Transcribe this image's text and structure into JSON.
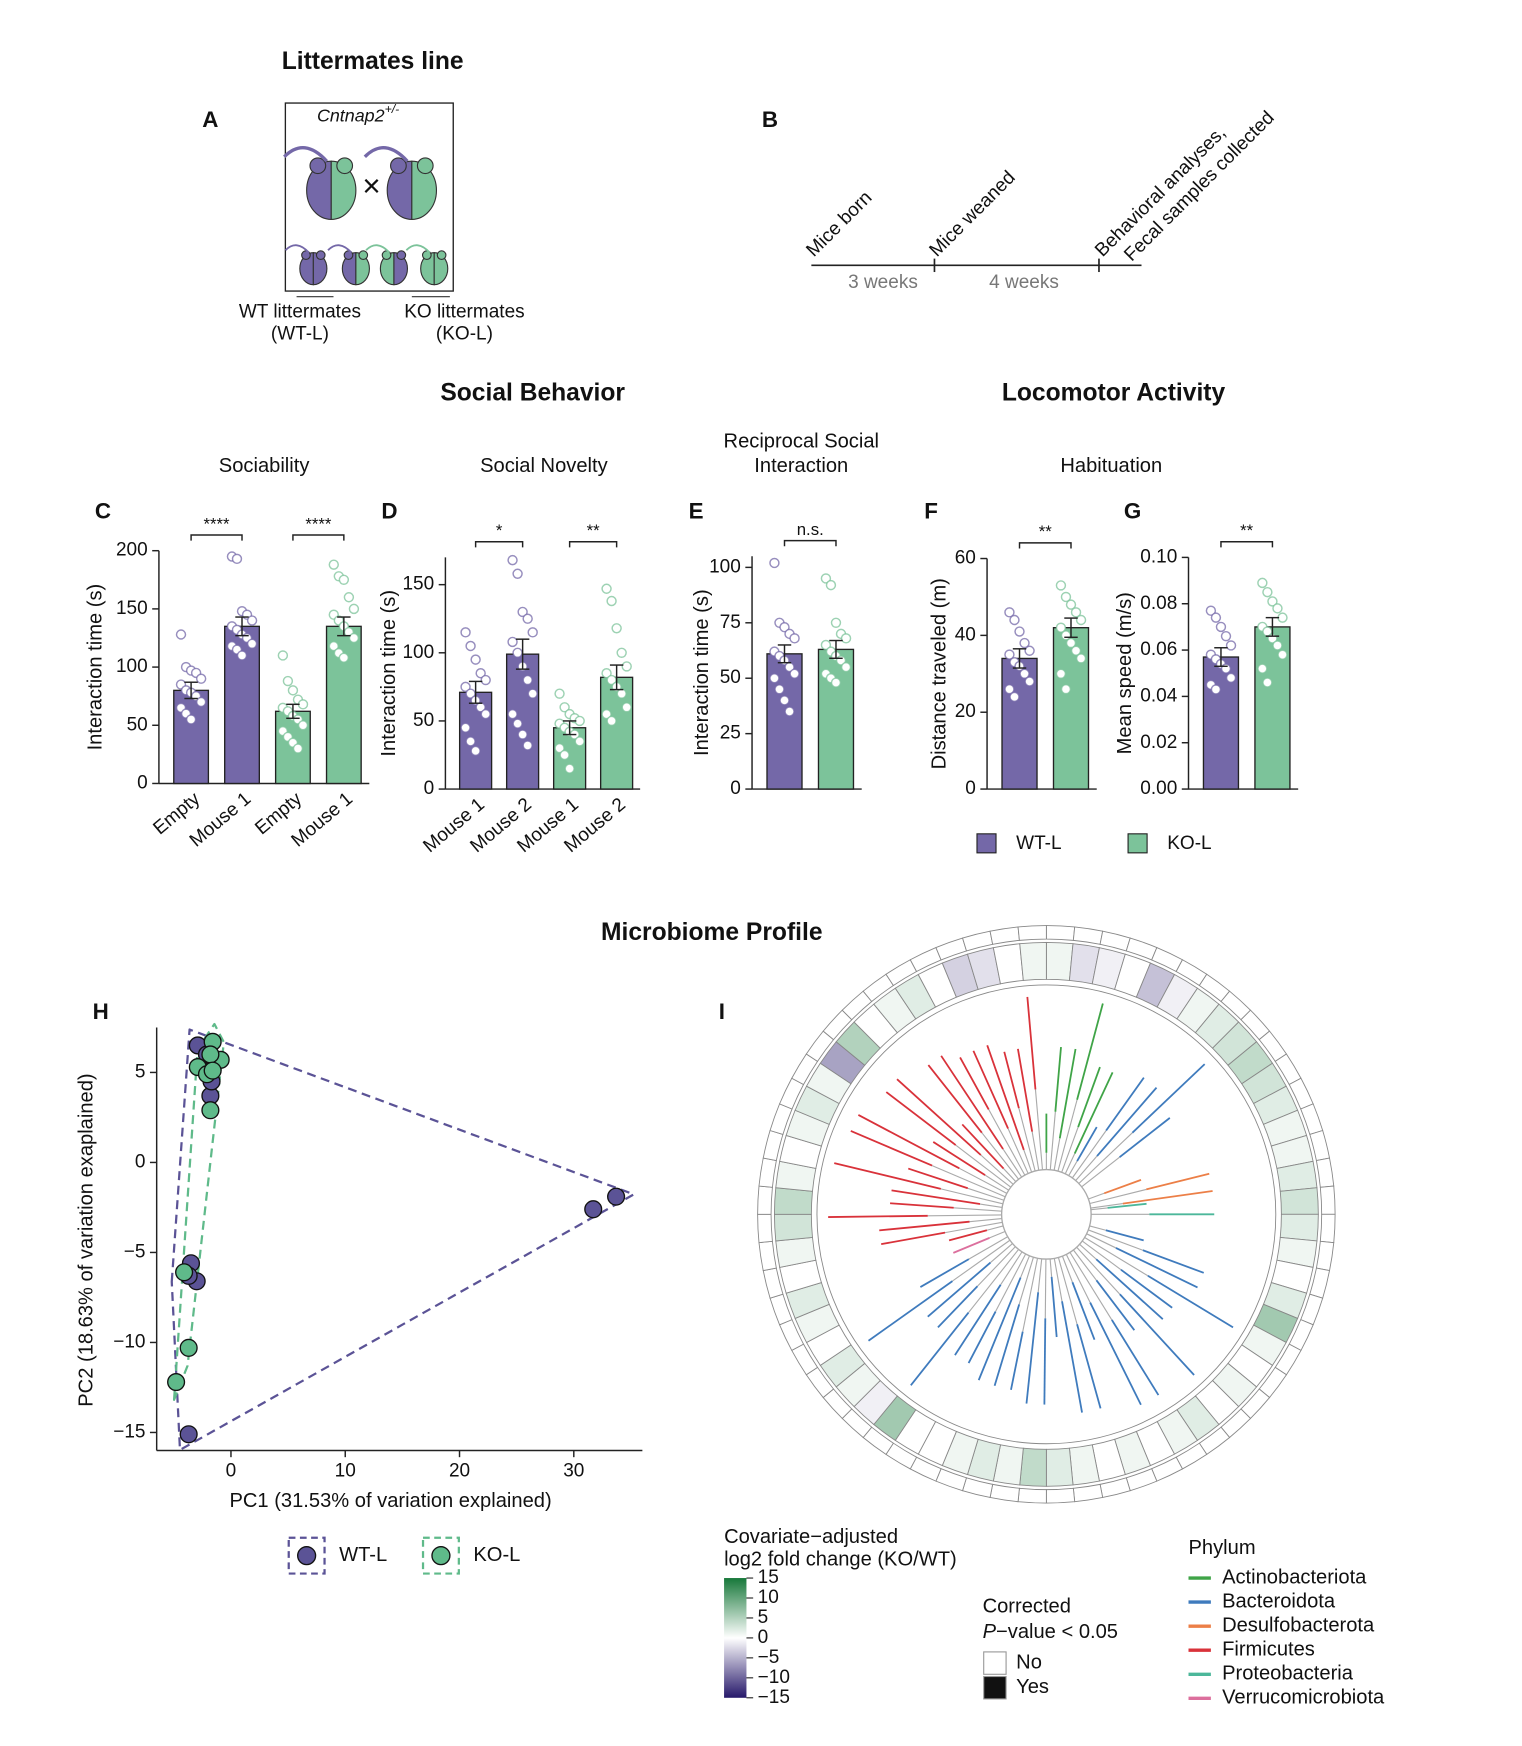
{
  "sections": {
    "littermates": "Littermates line",
    "social": "Social Behavior",
    "locomotor": "Locomotor Activity",
    "microbiome": "Microbiome Profile"
  },
  "panel_a": {
    "letter": "A",
    "gene": "Cntnap2",
    "gene_sup": "+/-",
    "genotype": "+/−",
    "cross": "×",
    "wt": [
      "WT littermates",
      "(WT-L)"
    ],
    "ko": [
      "KO littermates",
      "(KO-L)"
    ]
  },
  "panel_b": {
    "letter": "B",
    "events": [
      "Mice born",
      "Mice weaned",
      "Behavioral analyses,",
      "Fecal samples collected"
    ],
    "intervals": [
      "3 weeks",
      "4 weeks"
    ]
  },
  "behavior_legend": [
    {
      "name": "WT-L",
      "color": "#7468a8"
    },
    {
      "name": "KO-L",
      "color": "#7cc39a"
    }
  ],
  "chart_data": [
    {
      "type": "bar",
      "letter": "C",
      "title": "Sociability",
      "ylabel": "Interaction time (s)",
      "categories": [
        "Empty",
        "Mouse 1",
        "Empty",
        "Mouse 1"
      ],
      "colors": [
        "#7468a8",
        "#7468a8",
        "#7cc39a",
        "#7cc39a"
      ],
      "values": [
        80,
        135,
        62,
        135
      ],
      "errors": [
        7,
        8,
        6,
        8
      ],
      "points": [
        [
          128,
          100,
          97,
          95,
          90,
          85,
          80,
          78,
          75,
          70,
          65,
          60,
          55
        ],
        [
          195,
          193,
          148,
          145,
          140,
          135,
          132,
          128,
          125,
          120,
          118,
          115,
          110
        ],
        [
          110,
          88,
          80,
          72,
          68,
          65,
          62,
          58,
          55,
          50,
          45,
          40,
          35,
          30
        ],
        [
          188,
          178,
          175,
          160,
          150,
          145,
          140,
          135,
          130,
          125,
          118,
          112,
          108
        ]
      ],
      "significance": [
        "****",
        "****"
      ],
      "ylim": [
        0,
        200
      ],
      "yticks": [
        0,
        50,
        100,
        150,
        200
      ]
    },
    {
      "type": "bar",
      "letter": "D",
      "title": "Social Novelty",
      "ylabel": "Interaction time (s)",
      "categories": [
        "Mouse 1",
        "Mouse 2",
        "Mouse 1",
        "Mouse 2"
      ],
      "colors": [
        "#7468a8",
        "#7468a8",
        "#7cc39a",
        "#7cc39a"
      ],
      "values": [
        71,
        99,
        45,
        82
      ],
      "errors": [
        8,
        11,
        5,
        9
      ],
      "points": [
        [
          115,
          105,
          95,
          85,
          80,
          75,
          70,
          65,
          60,
          55,
          45,
          35,
          28
        ],
        [
          168,
          158,
          130,
          125,
          115,
          108,
          100,
          90,
          80,
          70,
          55,
          48,
          40,
          32
        ],
        [
          70,
          60,
          55,
          52,
          50,
          48,
          45,
          42,
          40,
          35,
          30,
          25,
          15
        ],
        [
          147,
          138,
          118,
          100,
          90,
          85,
          80,
          75,
          70,
          60,
          55,
          50
        ]
      ],
      "significance": [
        "*",
        "**"
      ],
      "ylim": [
        0,
        170
      ],
      "yticks": [
        0,
        50,
        100,
        150
      ]
    },
    {
      "type": "bar",
      "letter": "E",
      "title": [
        "Reciprocal Social",
        "Interaction"
      ],
      "ylabel": "Interaction time (s)",
      "colors": [
        "#7468a8",
        "#7cc39a"
      ],
      "values": [
        61,
        63
      ],
      "errors": [
        4,
        4
      ],
      "points": [
        [
          102,
          75,
          73,
          70,
          68,
          62,
          60,
          58,
          55,
          52,
          50,
          45,
          40,
          35
        ],
        [
          95,
          92,
          75,
          70,
          68,
          65,
          62,
          60,
          58,
          55,
          52,
          50,
          48
        ]
      ],
      "significance": [
        "n.s."
      ],
      "ylim": [
        0,
        105
      ],
      "yticks": [
        0,
        25,
        50,
        75,
        100
      ]
    },
    {
      "type": "bar",
      "letter": "F",
      "title": "Habituation",
      "ylabel": "Distance traveled (m)",
      "colors": [
        "#7468a8",
        "#7cc39a"
      ],
      "values": [
        34,
        42
      ],
      "errors": [
        2.5,
        2.5
      ],
      "points": [
        [
          46,
          44,
          41,
          38,
          36,
          35,
          33,
          32,
          30,
          28,
          26,
          24
        ],
        [
          53,
          50,
          48,
          46,
          44,
          42,
          40,
          38,
          36,
          34,
          30,
          26
        ]
      ],
      "significance": [
        "**"
      ],
      "ylim": [
        0,
        60
      ],
      "yticks": [
        0,
        20,
        40,
        60
      ]
    },
    {
      "type": "bar",
      "letter": "G",
      "ylabel": "Mean speed (m/s)",
      "colors": [
        "#7468a8",
        "#7cc39a"
      ],
      "values": [
        0.057,
        0.07
      ],
      "errors": [
        0.004,
        0.004
      ],
      "points": [
        [
          0.077,
          0.074,
          0.07,
          0.066,
          0.062,
          0.058,
          0.056,
          0.054,
          0.052,
          0.048,
          0.045,
          0.043
        ],
        [
          0.089,
          0.085,
          0.081,
          0.078,
          0.074,
          0.07,
          0.068,
          0.065,
          0.062,
          0.058,
          0.052,
          0.046
        ]
      ],
      "significance": [
        "**"
      ],
      "ylim": [
        0,
        0.1
      ],
      "yticks": [
        {
          "value": 0,
          "label": "0.00"
        },
        0.02,
        0.04,
        0.06,
        0.08,
        {
          "value": 0.1,
          "label": "0.10"
        }
      ]
    },
    {
      "type": "scatter",
      "letter": "H",
      "xlabel": "PC1 (31.53% of variation explained)",
      "ylabel": "PC2 (18.63% of variation exaplained)",
      "xlim": [
        -6.5,
        36
      ],
      "ylim": [
        -16,
        7.5
      ],
      "xticks": [
        0,
        10,
        20,
        30
      ],
      "yticks": [
        {
          "value": -15,
          "label": "−15"
        },
        {
          "value": -10,
          "label": "−10"
        },
        {
          "value": -5,
          "label": "−5"
        },
        0,
        5
      ],
      "series": [
        {
          "name": "WT-L",
          "color": "#5b5396",
          "x": [
            -2.9,
            -2.1,
            -1.7,
            -1.8,
            -1.7,
            -3.5,
            -3.0,
            -3.7,
            31.7,
            33.7,
            -3.7
          ],
          "y": [
            6.5,
            6.0,
            5.1,
            3.7,
            4.5,
            -5.6,
            -6.6,
            -6.3,
            -2.6,
            -1.9,
            -15.1
          ]
        },
        {
          "name": "KO-L",
          "color": "#5fba8a",
          "x": [
            -1.6,
            -0.9,
            -2.9,
            -1.8,
            -2.1,
            -1.6,
            -1.8,
            -4.1,
            -3.7,
            -4.8
          ],
          "y": [
            6.7,
            5.7,
            5.3,
            6.0,
            4.9,
            5.1,
            2.9,
            -6.1,
            -10.3,
            -12.2
          ]
        }
      ]
    },
    {
      "type": "circular_tree",
      "letter": "I",
      "ring_values": [
        1,
        -2,
        -1,
        0,
        -4,
        -1,
        1,
        2,
        3,
        4,
        3,
        2,
        1,
        1,
        2,
        3,
        2,
        1,
        0,
        2,
        6,
        1,
        0,
        1,
        0,
        2,
        1,
        0,
        1,
        0,
        1,
        2,
        4,
        1,
        2,
        1,
        0,
        0,
        6,
        -1,
        1,
        2,
        0,
        1,
        2,
        0,
        1,
        3,
        4,
        1,
        0,
        1,
        2,
        1,
        -6,
        5,
        0,
        1,
        2,
        0,
        -3,
        -2,
        0,
        1
      ],
      "colorbar_title": [
        "Covariate−adjusted",
        "log2 fold change (KO/WT)"
      ],
      "clim": [
        -15,
        15
      ],
      "colorbar_colors": [
        "#26186a",
        "#ffffff",
        "#17783a"
      ],
      "colorbar_ticks": [
        15,
        10,
        5,
        0,
        {
          "value": -5,
          "label": "−5"
        },
        {
          "value": -10,
          "label": "−10"
        },
        {
          "value": -15,
          "label": "−15"
        }
      ],
      "pvalue_legend": {
        "title": "Corrected",
        "p_italic": "P",
        "p_rest": "−value < 0.05",
        "levels": [
          {
            "name": "No",
            "color": "#ffffff"
          },
          {
            "name": "Yes",
            "color": "#111111"
          }
        ]
      },
      "phylum_title": "Phylum",
      "phyla": [
        {
          "name": "Actinobacteriota",
          "color": "#3fa447"
        },
        {
          "name": "Bacteroidota",
          "color": "#3f7bbd"
        },
        {
          "name": "Desulfobacterota",
          "color": "#ec7f47"
        },
        {
          "name": "Firmicutes",
          "color": "#d9323a"
        },
        {
          "name": "Proteobacteria",
          "color": "#4cb79a"
        },
        {
          "name": "Verrucomicrobiota",
          "color": "#dc6f9d"
        }
      ]
    }
  ]
}
